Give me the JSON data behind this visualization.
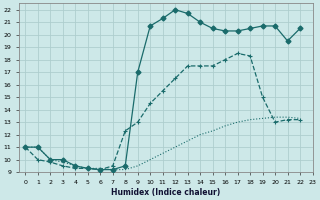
{
  "xlabel": "Humidex (Indice chaleur)",
  "xlim": [
    -0.5,
    23
  ],
  "ylim": [
    9,
    22.5
  ],
  "yticks": [
    9,
    10,
    11,
    12,
    13,
    14,
    15,
    16,
    17,
    18,
    19,
    20,
    21,
    22
  ],
  "xticks": [
    0,
    1,
    2,
    3,
    4,
    5,
    6,
    7,
    8,
    9,
    10,
    11,
    12,
    13,
    14,
    15,
    16,
    17,
    18,
    19,
    20,
    21,
    22,
    23
  ],
  "bg_color": "#cde8e8",
  "grid_color": "#aecece",
  "line_color": "#1a6b6b",
  "curve1_x": [
    0,
    1,
    2,
    3,
    4,
    5,
    6,
    7,
    8,
    9,
    10,
    11,
    12,
    13,
    14,
    15,
    16,
    17,
    18,
    19,
    20,
    21,
    22
  ],
  "curve1_y": [
    11,
    11,
    10,
    9.8,
    9.5,
    9.3,
    9.3,
    9.2,
    9.2,
    9.5,
    10.0,
    10.5,
    11.0,
    11.5,
    12.0,
    12.3,
    12.7,
    13.0,
    13.2,
    13.3,
    13.4,
    13.4,
    13.3
  ],
  "curve2_x": [
    0,
    1,
    2,
    3,
    4,
    5,
    6,
    7,
    8,
    9,
    10,
    11,
    12,
    13,
    14,
    15,
    16,
    17,
    18,
    19,
    20,
    21,
    22
  ],
  "curve2_y": [
    11,
    10,
    9.8,
    9.5,
    9.3,
    9.3,
    9.2,
    9.5,
    12.3,
    13.0,
    14.5,
    15.5,
    16.5,
    17.5,
    17.5,
    17.5,
    18.0,
    18.5,
    18.3,
    15.0,
    13.0,
    13.2,
    13.2
  ],
  "curve3_x": [
    0,
    1,
    2,
    3,
    4,
    5,
    6,
    7,
    8,
    9,
    10,
    11,
    12,
    13,
    14,
    15,
    16,
    17,
    18,
    19,
    20,
    21,
    22
  ],
  "curve3_y": [
    11,
    11,
    10,
    10,
    9.5,
    9.3,
    9.2,
    9.2,
    9.5,
    17.0,
    20.7,
    21.3,
    22.0,
    21.7,
    21.0,
    20.5,
    20.3,
    20.3,
    20.5,
    20.7,
    20.7,
    19.5,
    20.5
  ]
}
